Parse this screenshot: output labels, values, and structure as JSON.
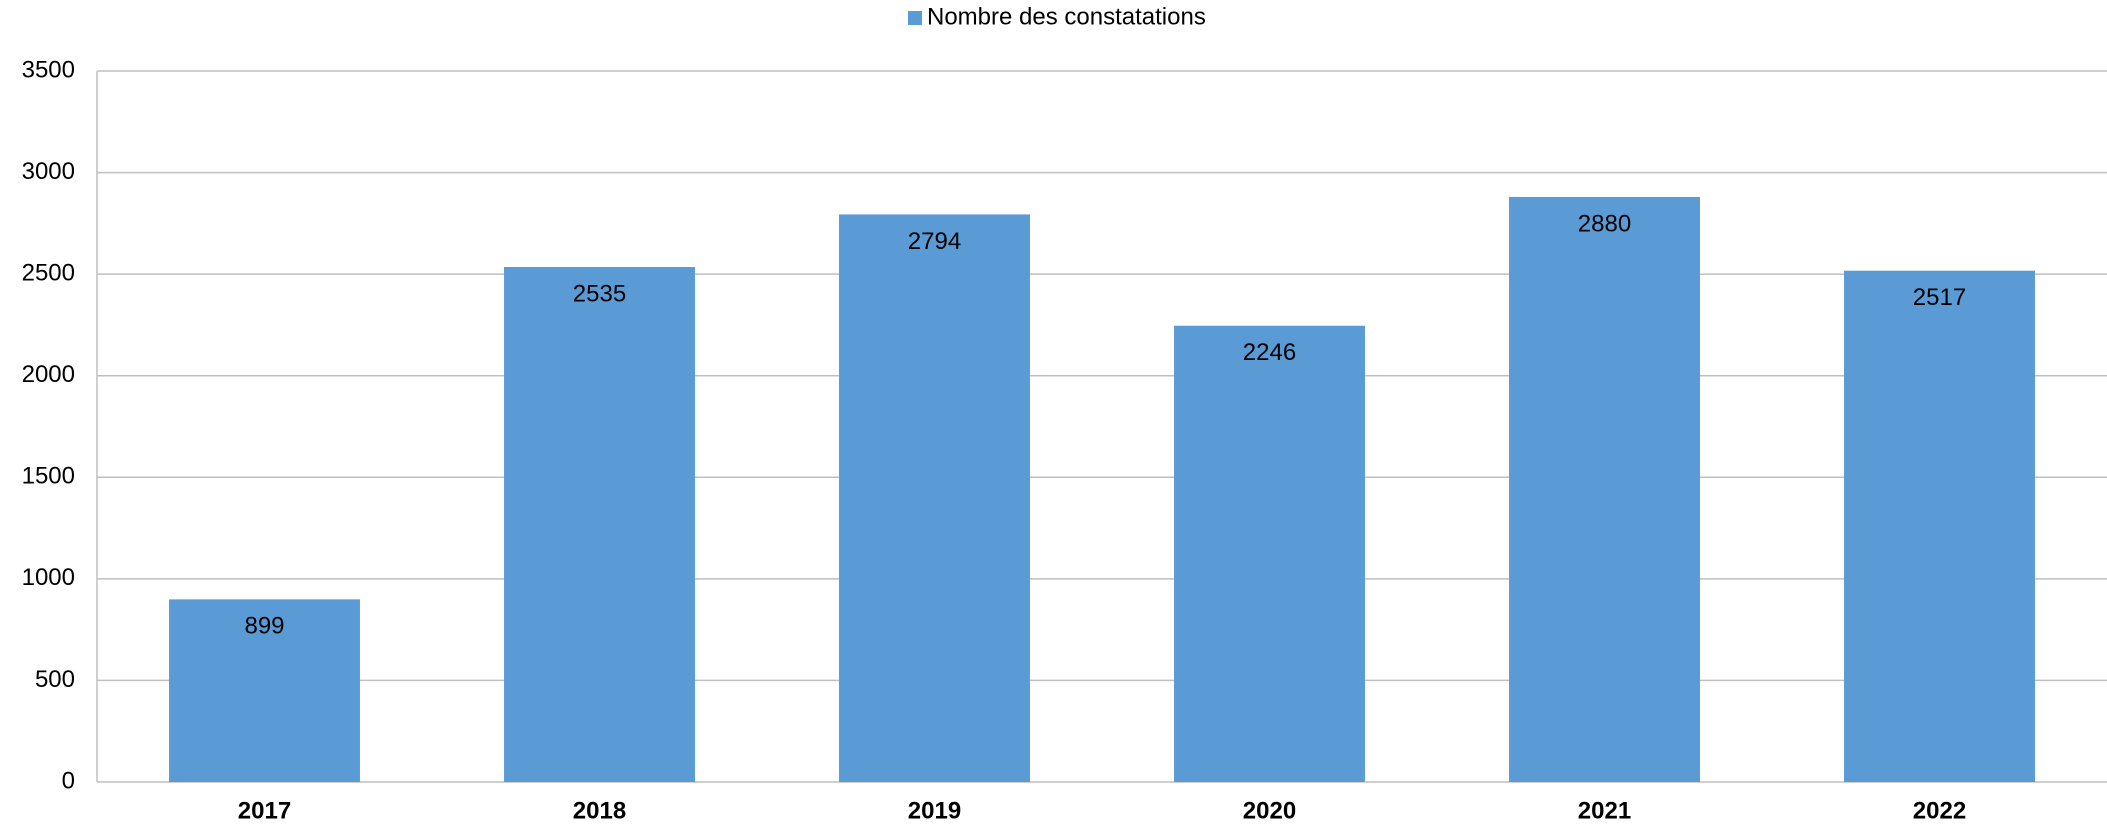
{
  "chart_data": {
    "type": "bar",
    "categories": [
      "2017",
      "2018",
      "2019",
      "2020",
      "2021",
      "2022"
    ],
    "series": [
      {
        "name": "Nombre des constatations",
        "color": "#5b9bd5",
        "values": [
          899,
          2535,
          2794,
          2246,
          2880,
          2517
        ]
      }
    ],
    "ylim": [
      0,
      3500
    ],
    "yticks": [
      0,
      500,
      1000,
      1500,
      2000,
      2500,
      3000,
      3500
    ],
    "grid": true,
    "legend": "top"
  }
}
